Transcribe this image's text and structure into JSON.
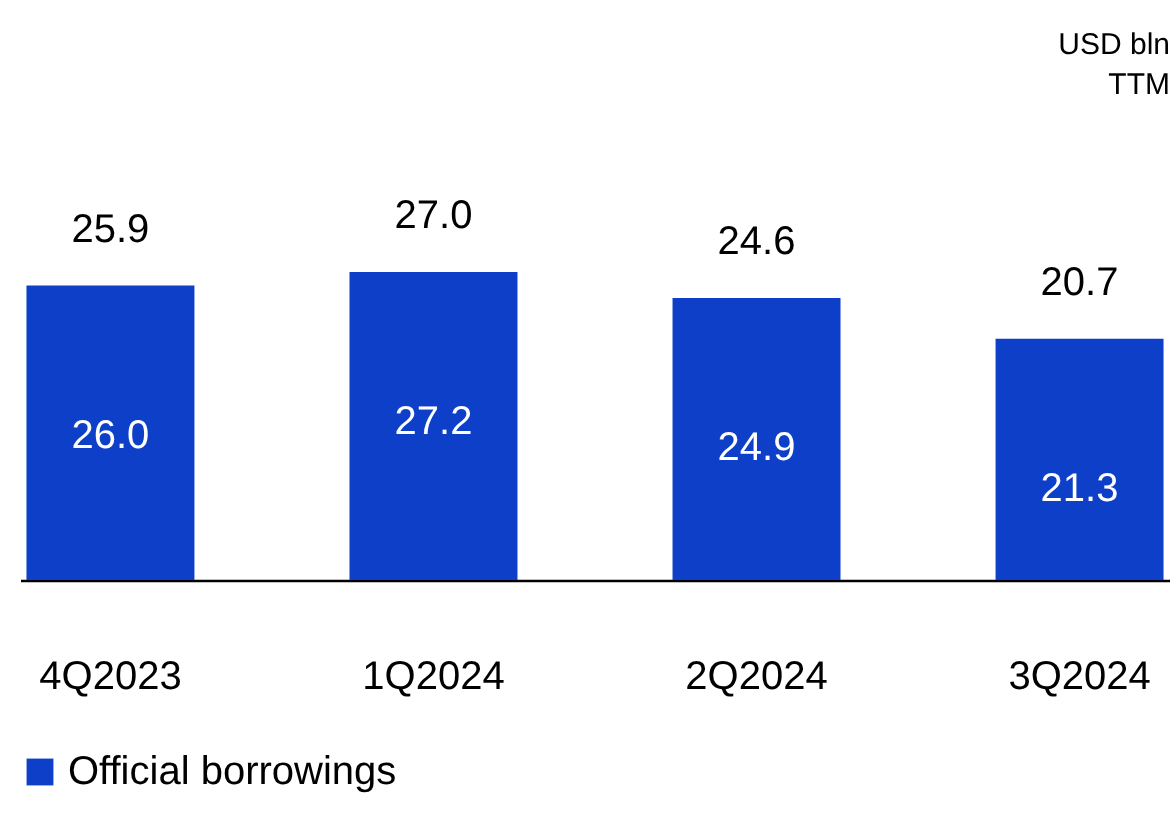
{
  "chart_data": {
    "type": "bar",
    "categories": [
      "4Q2023",
      "1Q2024",
      "2Q2024",
      "3Q2024"
    ],
    "series": [
      {
        "name": "Official borrowings",
        "color": "#0d3fc8",
        "values": [
          26.0,
          27.2,
          24.9,
          21.3
        ],
        "value_labels": [
          "26.0",
          "27.2",
          "24.9",
          "21.3"
        ]
      }
    ],
    "legend": "bottom",
    "grid": false,
    "annotations": [
      "USD bln",
      "TTM",
      {
        "text": "25.9",
        "x": "4Q2023",
        "y": 26.0
      },
      {
        "text": "27.0",
        "x": "1Q2024",
        "y": 27.2
      },
      {
        "text": "24.6",
        "x": "2Q2024",
        "y": 24.9
      },
      {
        "text": "20.7",
        "x": "3Q2024",
        "y": 21.3
      }
    ]
  }
}
